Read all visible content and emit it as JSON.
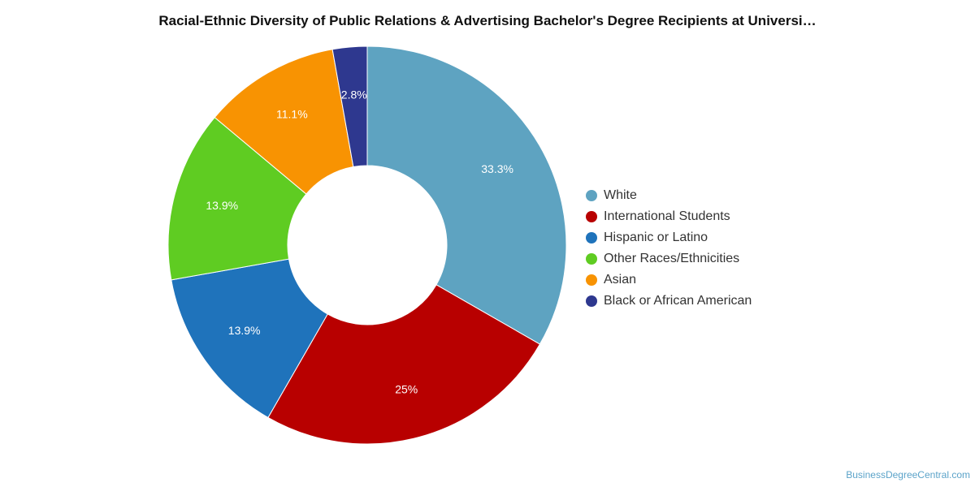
{
  "chart_data": {
    "type": "pie",
    "variant": "donut",
    "title": "Racial-Ethnic Diversity of Public Relations & Advertising Bachelor's Degree Recipients at Universi…",
    "slices": [
      {
        "label": "White",
        "value": 33.3,
        "display": "33.3%",
        "color": "#5ea3c1"
      },
      {
        "label": "International Students",
        "value": 25.0,
        "display": "25%",
        "color": "#b80000"
      },
      {
        "label": "Hispanic or Latino",
        "value": 13.9,
        "display": "13.9%",
        "color": "#1f73bb"
      },
      {
        "label": "Other Races/Ethnicities",
        "value": 13.9,
        "display": "13.9%",
        "color": "#5fcc22"
      },
      {
        "label": "Asian",
        "value": 11.1,
        "display": "11.1%",
        "color": "#f89302"
      },
      {
        "label": "Black or African American",
        "value": 2.8,
        "display": "2.8%",
        "color": "#2e388f"
      }
    ],
    "legend_position": "right"
  },
  "credit": "BusinessDegreeCentral.com"
}
